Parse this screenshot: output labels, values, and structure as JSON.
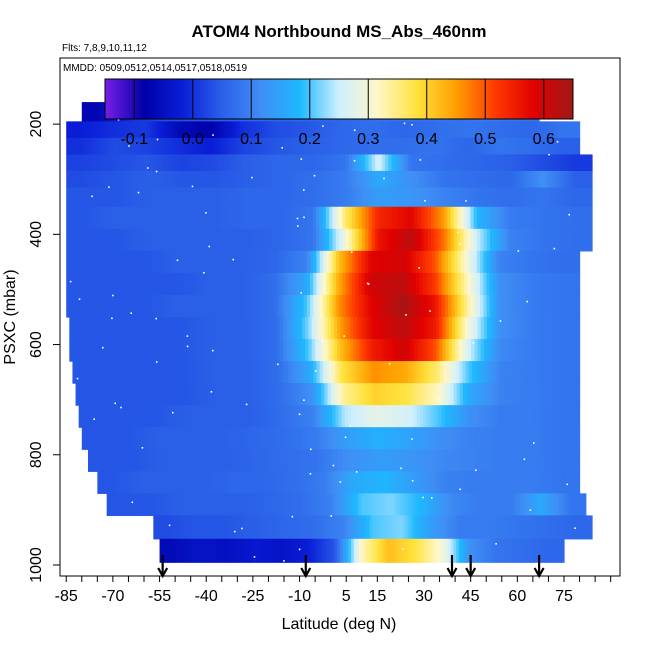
{
  "chart_data": {
    "type": "heatmap",
    "title": "ATOM4 Northbound MS_Abs_460nm",
    "subtitle_flights": "Flts: 7,8,9,10,11,12",
    "subtitle_dates": "MMDD: 0509,0512,0514,0517,0518,0519",
    "xlabel": "Latitude (deg N)",
    "ylabel": "PSXC (mbar)",
    "xlim": [
      -87,
      93
    ],
    "ylim": [
      1020,
      80
    ],
    "x_ticks": [
      -85,
      -70,
      -55,
      -40,
      -25,
      -10,
      5,
      15,
      30,
      45,
      60,
      75
    ],
    "x_tick_labels": [
      "-85",
      "-70",
      "-55",
      "-40",
      "-25",
      "-10",
      "5",
      "15",
      "30",
      "45",
      "60",
      "75"
    ],
    "y_ticks": [
      200,
      400,
      600,
      800,
      1000
    ],
    "y_tick_labels": [
      "200",
      "400",
      "600",
      "800",
      "1000"
    ],
    "colorbar": {
      "range": [
        -0.15,
        0.65
      ],
      "ticks": [
        -0.1,
        0.0,
        0.1,
        0.2,
        0.3,
        0.4,
        0.5,
        0.6
      ],
      "tick_labels": [
        "-0.1",
        "0.0",
        "0.1",
        "0.2",
        "0.3",
        "0.4",
        "0.5",
        "0.6"
      ],
      "colors": [
        "#7a1fe8",
        "#0000a8",
        "#0a1fd8",
        "#2a60e8",
        "#3f8ef5",
        "#1eb8ff",
        "#cfefff",
        "#fff7c8",
        "#ffe23c",
        "#ff9f00",
        "#ff3a00",
        "#e00000",
        "#a01818"
      ]
    },
    "flight_markers_latitude": [
      -54,
      -8,
      39,
      45,
      67
    ],
    "rows": [
      {
        "p": 180,
        "lat": [
          -80,
          67
        ],
        "v": [
          -0.07,
          0.0,
          0.03,
          0.04,
          0.05,
          0.06,
          0.06,
          0.06,
          0.07,
          0.08,
          0.08,
          0.08,
          0.09,
          0.08
        ]
      },
      {
        "p": 210,
        "lat": [
          -85,
          80
        ],
        "v": [
          -0.02,
          0.0,
          0.01,
          -0.06,
          -0.08,
          0.0,
          0.03,
          0.04,
          0.06,
          0.07,
          0.06,
          0.07,
          0.08,
          0.07,
          0.06,
          0.08
        ]
      },
      {
        "p": 240,
        "lat": [
          -85,
          80
        ],
        "v": [
          0.0,
          0.03,
          0.02,
          0.0,
          -0.02,
          0.02,
          0.04,
          0.05,
          0.06,
          0.07,
          0.07,
          0.08,
          0.06,
          0.08,
          0.07,
          0.05
        ]
      },
      {
        "p": 270,
        "lat": [
          -85,
          84
        ],
        "v": [
          0.02,
          0.03,
          0.04,
          0.02,
          0.03,
          0.05,
          0.06,
          0.06,
          0.08,
          0.26,
          0.08,
          0.07,
          0.06,
          0.05,
          0.03,
          0.01
        ]
      },
      {
        "p": 300,
        "lat": [
          -85,
          84
        ],
        "v": [
          0.03,
          0.04,
          0.05,
          0.04,
          0.04,
          0.05,
          0.06,
          0.07,
          0.09,
          0.16,
          0.12,
          0.08,
          0.07,
          0.06,
          0.12,
          0.05
        ]
      },
      {
        "p": 330,
        "lat": [
          -85,
          84
        ],
        "v": [
          0.04,
          0.04,
          0.05,
          0.05,
          0.05,
          0.06,
          0.06,
          0.07,
          0.09,
          0.14,
          0.13,
          0.1,
          0.08,
          0.07,
          0.08,
          0.06
        ]
      },
      {
        "p": 370,
        "lat": [
          -85,
          84
        ],
        "v": [
          0.04,
          0.05,
          0.05,
          0.05,
          0.05,
          0.06,
          0.06,
          0.08,
          0.36,
          0.54,
          0.58,
          0.45,
          0.18,
          0.09,
          0.08,
          0.07
        ]
      },
      {
        "p": 410,
        "lat": [
          -85,
          84
        ],
        "v": [
          0.04,
          0.04,
          0.05,
          0.05,
          0.05,
          0.05,
          0.06,
          0.08,
          0.3,
          0.56,
          0.62,
          0.48,
          0.25,
          0.1,
          0.08,
          0.07
        ]
      },
      {
        "p": 450,
        "lat": [
          -85,
          80
        ],
        "v": [
          0.04,
          0.04,
          0.04,
          0.05,
          0.05,
          0.05,
          0.06,
          0.1,
          0.42,
          0.58,
          0.6,
          0.5,
          0.3,
          0.1,
          0.08,
          0.07
        ]
      },
      {
        "p": 490,
        "lat": [
          -85,
          80
        ],
        "v": [
          0.04,
          0.04,
          0.04,
          0.04,
          0.05,
          0.05,
          0.07,
          0.16,
          0.44,
          0.6,
          0.62,
          0.52,
          0.32,
          0.12,
          0.09,
          0.08
        ]
      },
      {
        "p": 530,
        "lat": [
          -85,
          80
        ],
        "v": [
          0.04,
          0.04,
          0.04,
          0.05,
          0.05,
          0.05,
          0.07,
          0.2,
          0.46,
          0.58,
          0.64,
          0.56,
          0.34,
          0.12,
          0.09,
          0.08
        ]
      },
      {
        "p": 570,
        "lat": [
          -84,
          80
        ],
        "v": [
          0.04,
          0.04,
          0.04,
          0.04,
          0.05,
          0.05,
          0.07,
          0.22,
          0.45,
          0.58,
          0.62,
          0.55,
          0.3,
          0.12,
          0.09,
          0.08
        ]
      },
      {
        "p": 610,
        "lat": [
          -84,
          80
        ],
        "v": [
          0.04,
          0.04,
          0.04,
          0.04,
          0.05,
          0.05,
          0.07,
          0.2,
          0.42,
          0.55,
          0.6,
          0.5,
          0.26,
          0.11,
          0.09,
          0.08
        ]
      },
      {
        "p": 650,
        "lat": [
          -83,
          80
        ],
        "v": [
          0.04,
          0.04,
          0.04,
          0.04,
          0.05,
          0.05,
          0.07,
          0.16,
          0.38,
          0.46,
          0.44,
          0.36,
          0.2,
          0.1,
          0.09,
          0.08
        ]
      },
      {
        "p": 690,
        "lat": [
          -82,
          80
        ],
        "v": [
          0.04,
          0.04,
          0.04,
          0.04,
          0.05,
          0.05,
          0.07,
          0.12,
          0.34,
          0.4,
          0.38,
          0.32,
          0.16,
          0.1,
          0.09,
          0.08
        ]
      },
      {
        "p": 730,
        "lat": [
          -81,
          80
        ],
        "v": [
          0.04,
          0.04,
          0.04,
          0.05,
          0.05,
          0.05,
          0.07,
          0.1,
          0.24,
          0.28,
          0.26,
          0.2,
          0.12,
          0.09,
          0.09,
          0.08
        ]
      },
      {
        "p": 770,
        "lat": [
          -80,
          80
        ],
        "v": [
          0.04,
          0.04,
          0.05,
          0.05,
          0.05,
          0.06,
          0.07,
          0.09,
          0.14,
          0.17,
          0.15,
          0.12,
          0.1,
          0.09,
          0.09,
          0.08
        ]
      },
      {
        "p": 810,
        "lat": [
          -78,
          80
        ],
        "v": [
          0.04,
          0.04,
          0.05,
          0.05,
          0.05,
          0.06,
          0.07,
          0.08,
          0.12,
          0.14,
          0.13,
          0.11,
          0.1,
          0.09,
          0.09,
          0.08
        ]
      },
      {
        "p": 850,
        "lat": [
          -75,
          80
        ],
        "v": [
          0.04,
          0.05,
          0.05,
          0.05,
          0.06,
          0.06,
          0.07,
          0.09,
          0.16,
          0.18,
          0.14,
          0.1,
          0.09,
          0.09,
          0.09,
          0.08
        ]
      },
      {
        "p": 890,
        "lat": [
          -72,
          82
        ],
        "v": [
          0.04,
          0.04,
          0.05,
          0.05,
          0.05,
          0.06,
          0.07,
          0.1,
          0.2,
          0.22,
          0.18,
          0.11,
          0.09,
          0.09,
          0.16,
          0.08
        ]
      },
      {
        "p": 930,
        "lat": [
          -57,
          84
        ],
        "v": [
          0.03,
          0.04,
          0.04,
          0.05,
          0.06,
          0.07,
          0.1,
          0.2,
          0.22,
          0.14,
          0.09,
          0.09,
          0.08,
          0.07,
          0.06
        ]
      },
      {
        "p": 975,
        "lat": [
          -55,
          75
        ],
        "v": [
          -0.06,
          -0.04,
          -0.05,
          -0.03,
          -0.04,
          -0.02,
          0.04,
          0.32,
          0.42,
          0.38,
          0.3,
          0.12,
          0.08,
          0.07,
          0.06
        ]
      }
    ]
  }
}
